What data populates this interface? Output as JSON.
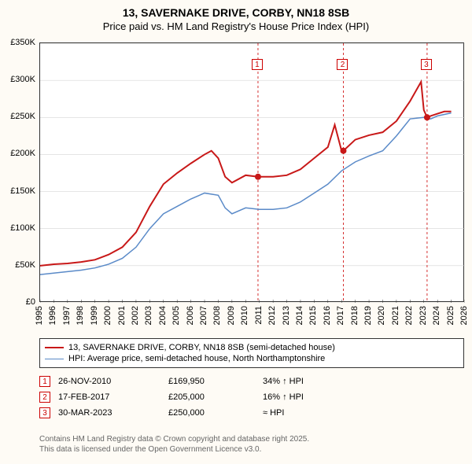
{
  "title_main": "13, SAVERNAKE DRIVE, CORBY, NN18 8SB",
  "title_sub": "Price paid vs. HM Land Registry's House Price Index (HPI)",
  "chart": {
    "type": "line",
    "background_color": "#ffffff",
    "page_background": "#fefbf5",
    "xlim": [
      1995,
      2026
    ],
    "ylim": [
      0,
      350000
    ],
    "y_ticks": [
      0,
      50000,
      100000,
      150000,
      200000,
      250000,
      300000,
      350000
    ],
    "y_tick_labels": [
      "£0",
      "£50K",
      "£100K",
      "£150K",
      "£200K",
      "£250K",
      "£300K",
      "£350K"
    ],
    "x_ticks": [
      1995,
      1996,
      1997,
      1998,
      1999,
      2000,
      2001,
      2002,
      2003,
      2004,
      2005,
      2006,
      2007,
      2008,
      2009,
      2010,
      2011,
      2012,
      2013,
      2014,
      2015,
      2016,
      2017,
      2018,
      2019,
      2020,
      2021,
      2022,
      2023,
      2024,
      2025,
      2026
    ],
    "series": [
      {
        "name": "property",
        "color": "#c81818",
        "line_width": 2,
        "data": [
          [
            1995,
            50000
          ],
          [
            1996,
            52000
          ],
          [
            1997,
            53000
          ],
          [
            1998,
            55000
          ],
          [
            1999,
            58000
          ],
          [
            2000,
            65000
          ],
          [
            2001,
            75000
          ],
          [
            2002,
            95000
          ],
          [
            2003,
            130000
          ],
          [
            2004,
            160000
          ],
          [
            2005,
            175000
          ],
          [
            2006,
            188000
          ],
          [
            2007,
            200000
          ],
          [
            2007.5,
            205000
          ],
          [
            2008,
            195000
          ],
          [
            2008.5,
            170000
          ],
          [
            2009,
            162000
          ],
          [
            2010,
            172000
          ],
          [
            2010.9,
            169950
          ],
          [
            2011,
            170000
          ],
          [
            2012,
            170000
          ],
          [
            2013,
            172000
          ],
          [
            2014,
            180000
          ],
          [
            2015,
            195000
          ],
          [
            2016,
            210000
          ],
          [
            2016.5,
            240000
          ],
          [
            2017,
            205000
          ],
          [
            2017.13,
            205000
          ],
          [
            2018,
            220000
          ],
          [
            2019,
            226000
          ],
          [
            2020,
            230000
          ],
          [
            2021,
            245000
          ],
          [
            2022,
            272000
          ],
          [
            2022.8,
            298000
          ],
          [
            2023,
            260000
          ],
          [
            2023.24,
            250000
          ],
          [
            2023.5,
            252000
          ],
          [
            2024,
            255000
          ],
          [
            2024.5,
            258000
          ],
          [
            2025,
            258000
          ]
        ]
      },
      {
        "name": "hpi",
        "color": "#5a8ac8",
        "line_width": 1.5,
        "data": [
          [
            1995,
            38000
          ],
          [
            1996,
            40000
          ],
          [
            1997,
            42000
          ],
          [
            1998,
            44000
          ],
          [
            1999,
            47000
          ],
          [
            2000,
            52000
          ],
          [
            2001,
            60000
          ],
          [
            2002,
            75000
          ],
          [
            2003,
            100000
          ],
          [
            2004,
            120000
          ],
          [
            2005,
            130000
          ],
          [
            2006,
            140000
          ],
          [
            2007,
            148000
          ],
          [
            2008,
            145000
          ],
          [
            2008.5,
            128000
          ],
          [
            2009,
            120000
          ],
          [
            2010,
            128000
          ],
          [
            2011,
            126000
          ],
          [
            2012,
            126000
          ],
          [
            2013,
            128000
          ],
          [
            2014,
            136000
          ],
          [
            2015,
            148000
          ],
          [
            2016,
            160000
          ],
          [
            2017,
            178000
          ],
          [
            2018,
            190000
          ],
          [
            2019,
            198000
          ],
          [
            2020,
            205000
          ],
          [
            2021,
            225000
          ],
          [
            2022,
            248000
          ],
          [
            2023,
            250000
          ],
          [
            2023.5,
            248000
          ],
          [
            2024,
            252000
          ],
          [
            2025,
            256000
          ]
        ]
      }
    ],
    "sale_points": [
      {
        "x": 2010.9,
        "y": 169950,
        "color": "#c81818"
      },
      {
        "x": 2017.13,
        "y": 205000,
        "color": "#c81818"
      },
      {
        "x": 2023.24,
        "y": 250000,
        "color": "#c81818"
      }
    ],
    "markers": [
      {
        "n": "1",
        "x": 2010.9,
        "label_y": 320000
      },
      {
        "n": "2",
        "x": 2017.13,
        "label_y": 320000
      },
      {
        "n": "3",
        "x": 2023.24,
        "label_y": 320000
      }
    ]
  },
  "legend": [
    {
      "color": "#c81818",
      "width": 2,
      "label": "13, SAVERNAKE DRIVE, CORBY, NN18 8SB (semi-detached house)"
    },
    {
      "color": "#5a8ac8",
      "width": 1.5,
      "label": "HPI: Average price, semi-detached house, North Northamptonshire"
    }
  ],
  "sales_table": [
    {
      "n": "1",
      "date": "26-NOV-2010",
      "price": "£169,950",
      "diff": "34% ↑ HPI"
    },
    {
      "n": "2",
      "date": "17-FEB-2017",
      "price": "£205,000",
      "diff": "16% ↑ HPI"
    },
    {
      "n": "3",
      "date": "30-MAR-2023",
      "price": "£250,000",
      "diff": "≈ HPI"
    }
  ],
  "footer_line1": "Contains HM Land Registry data © Crown copyright and database right 2025.",
  "footer_line2": "This data is licensed under the Open Government Licence v3.0."
}
